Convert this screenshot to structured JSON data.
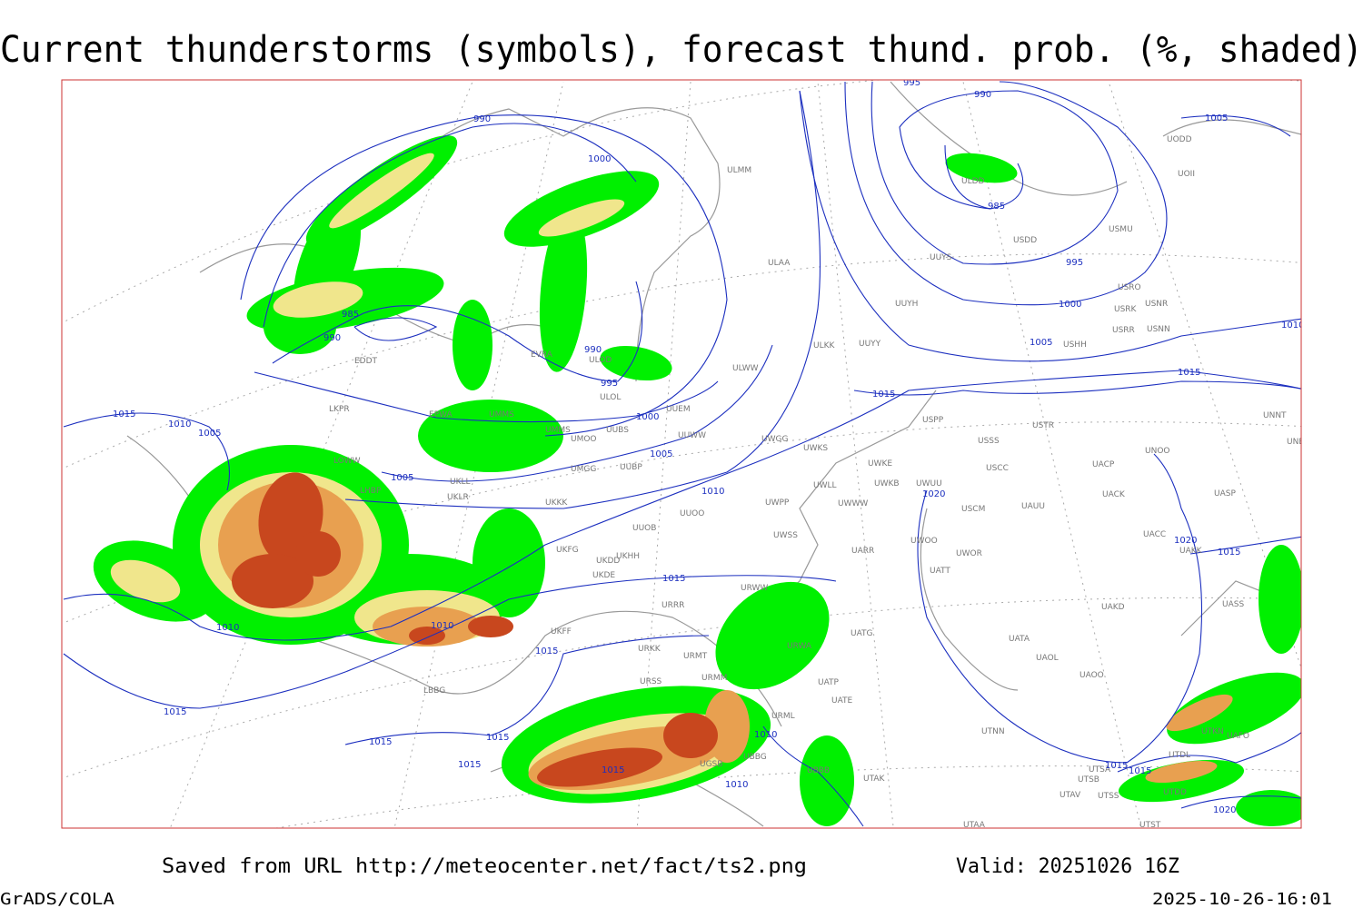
{
  "title": "Current thunderstorms (symbols), forecast thund. prob. (%, shaded)",
  "footer": {
    "saved_from": "Saved from URL http://meteocenter.net/fact/ts2.png",
    "valid": "Valid: 20251026 16Z",
    "software": "GrADS/COLA",
    "timestamp": "2025-10-26-16:01"
  },
  "stations": [
    "ULMM",
    "ULAA",
    "UUYH",
    "UUYY",
    "ULKK",
    "UUYS",
    "USDD",
    "ULDD",
    "USMU",
    "UODD",
    "UOII",
    "USRO",
    "USRK",
    "USNR",
    "USRR",
    "USNN",
    "USHH",
    "ULWW",
    "ULOL",
    "UUEM",
    "UUWW",
    "UMMS",
    "EPWA",
    "UMMS",
    "UMOO",
    "UUBS",
    "UUBP",
    "UMGG",
    "UKLL",
    "UKLR",
    "UKKK",
    "LHBP",
    "LOWW",
    "LKPR",
    "EDDT",
    "EVRA",
    "ULOD",
    "UWGG",
    "UWKS",
    "UWKE",
    "UWKB",
    "UWUU",
    "UWLL",
    "UWWW",
    "UWPP",
    "UWSS",
    "UUOO",
    "UUOB",
    "UKHH",
    "UKDD",
    "UKFG",
    "UKDE",
    "URRR",
    "UKFF",
    "URKK",
    "URMT",
    "URMM",
    "URSS",
    "URWA",
    "URWW",
    "UATG",
    "UATT",
    "UARR",
    "UWOO",
    "UWOR",
    "USCM",
    "UAUU",
    "USCC",
    "USSS",
    "USTR",
    "USPP",
    "UACP",
    "UACK",
    "UNOO",
    "UNNT",
    "UNBB",
    "UASP",
    "UACC",
    "UAKK",
    "UAKD",
    "UASS",
    "UATA",
    "UAOL",
    "UAOO",
    "UATE",
    "UATP",
    "URML",
    "UTNN",
    "UTAK",
    "UBBB",
    "UBBG",
    "UGSB",
    "UTSA",
    "UTSB",
    "UTAV",
    "UTSS",
    "UTDD",
    "UTDL",
    "UTKN",
    "UAFO",
    "UTAA",
    "UTST",
    "LBBG"
  ],
  "isobars": [
    990,
    1000,
    985,
    990,
    995,
    990,
    1000,
    1005,
    1005,
    1010,
    1015,
    1010,
    1005,
    1010,
    1010,
    1015,
    1015,
    1015,
    1015,
    1015,
    1015,
    1015,
    1010,
    1010,
    995,
    990,
    985,
    995,
    1000,
    1005,
    1015,
    1015,
    1020,
    1020,
    1015,
    1015,
    1015,
    1020,
    1005,
    1010
  ]
}
